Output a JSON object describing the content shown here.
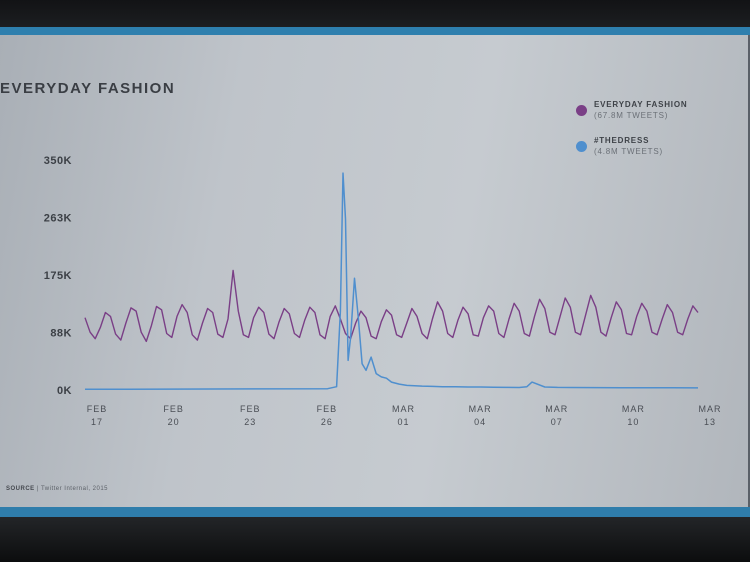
{
  "chart_data": {
    "type": "line",
    "title": "EVERYDAY FASHION",
    "source_label": "SOURCE",
    "source_text": "Twitter Internal, 2015",
    "y_ticks": [
      "0K",
      "88K",
      "175K",
      "263K",
      "350K"
    ],
    "ylim": [
      0,
      350000
    ],
    "x_ticks": [
      {
        "month": "FEB",
        "day": "17",
        "date": 17
      },
      {
        "month": "FEB",
        "day": "20",
        "date": 20
      },
      {
        "month": "FEB",
        "day": "23",
        "date": 23
      },
      {
        "month": "FEB",
        "day": "26",
        "date": 26
      },
      {
        "month": "MAR",
        "day": "01",
        "date": 29
      },
      {
        "month": "MAR",
        "day": "04",
        "date": 32
      },
      {
        "month": "MAR",
        "day": "07",
        "date": 35
      },
      {
        "month": "MAR",
        "day": "10",
        "date": 38
      },
      {
        "month": "MAR",
        "day": "13",
        "date": 41
      }
    ],
    "xlim": [
      17,
      41
    ],
    "grid": false,
    "legend_position": "top-right",
    "series": [
      {
        "name": "EVERYDAY FASHION",
        "sub": "(67.8M TWEETS)",
        "color": "#7a3f86",
        "x": [
          17.0,
          17.2,
          17.4,
          17.6,
          17.8,
          18.0,
          18.2,
          18.4,
          18.6,
          18.8,
          19.0,
          19.2,
          19.4,
          19.6,
          19.8,
          20.0,
          20.2,
          20.4,
          20.6,
          20.8,
          21.0,
          21.2,
          21.4,
          21.6,
          21.8,
          22.0,
          22.2,
          22.4,
          22.6,
          22.8,
          23.0,
          23.2,
          23.4,
          23.6,
          23.8,
          24.0,
          24.2,
          24.4,
          24.6,
          24.8,
          25.0,
          25.2,
          25.4,
          25.6,
          25.8,
          26.0,
          26.2,
          26.4,
          26.6,
          26.8,
          27.0,
          27.2,
          27.4,
          27.6,
          27.8,
          28.0,
          28.2,
          28.4,
          28.6,
          28.8,
          29.0,
          29.2,
          29.4,
          29.6,
          29.8,
          30.0,
          30.2,
          30.4,
          30.6,
          30.8,
          31.0,
          31.2,
          31.4,
          31.6,
          31.8,
          32.0,
          32.2,
          32.4,
          32.6,
          32.8,
          33.0,
          33.2,
          33.4,
          33.6,
          33.8,
          34.0,
          34.2,
          34.4,
          34.6,
          34.8,
          35.0,
          35.2,
          35.4,
          35.6,
          35.8,
          36.0,
          36.2,
          36.4,
          36.6,
          36.8,
          37.0,
          37.2,
          37.4,
          37.6,
          37.8,
          38.0,
          38.2,
          38.4,
          38.6,
          38.8,
          39.0,
          39.2,
          39.4,
          39.6,
          39.8,
          40.0,
          40.2,
          40.4,
          40.6,
          40.8,
          41.0
        ],
        "values": [
          110000,
          88000,
          78000,
          95000,
          118000,
          112000,
          85000,
          76000,
          102000,
          125000,
          120000,
          88000,
          74000,
          98000,
          127000,
          122000,
          86000,
          80000,
          112000,
          130000,
          118000,
          84000,
          76000,
          102000,
          124000,
          118000,
          85000,
          80000,
          108000,
          182000,
          120000,
          84000,
          80000,
          110000,
          126000,
          118000,
          85000,
          78000,
          104000,
          124000,
          116000,
          86000,
          80000,
          106000,
          126000,
          118000,
          84000,
          78000,
          112000,
          128000,
          108000,
          86000,
          78000,
          102000,
          120000,
          110000,
          82000,
          78000,
          104000,
          122000,
          114000,
          84000,
          80000,
          102000,
          124000,
          112000,
          86000,
          78000,
          108000,
          134000,
          120000,
          86000,
          80000,
          106000,
          126000,
          116000,
          84000,
          82000,
          110000,
          128000,
          120000,
          86000,
          80000,
          108000,
          132000,
          120000,
          86000,
          82000,
          112000,
          138000,
          124000,
          88000,
          84000,
          112000,
          140000,
          126000,
          88000,
          84000,
          114000,
          144000,
          126000,
          88000,
          82000,
          110000,
          134000,
          122000,
          86000,
          84000,
          112000,
          132000,
          120000,
          88000,
          84000,
          108000,
          130000,
          118000,
          88000,
          84000,
          108000,
          128000,
          118000
        ]
      },
      {
        "name": "#THEDRESS",
        "sub": "(4.8M TWEETS)",
        "color": "#4f8fce",
        "x": [
          17,
          26.5,
          26.85,
          27.0,
          27.1,
          27.2,
          27.3,
          27.4,
          27.55,
          27.7,
          27.85,
          28.0,
          28.2,
          28.4,
          28.6,
          28.8,
          29.0,
          29.3,
          29.6,
          29.9,
          30.2,
          30.6,
          31.0,
          31.5,
          32.0,
          32.5,
          33.0,
          33.5,
          34.0,
          34.3,
          34.5,
          35.0,
          35.5,
          36.0,
          37.0,
          38.0,
          39.0,
          40.0,
          41.0
        ],
        "values": [
          1000,
          2000,
          5000,
          120000,
          330000,
          260000,
          45000,
          80000,
          170000,
          110000,
          40000,
          30000,
          50000,
          25000,
          20000,
          18000,
          12000,
          9000,
          7000,
          6500,
          6000,
          5500,
          5000,
          4800,
          4500,
          4500,
          4200,
          4000,
          3800,
          5000,
          12000,
          4500,
          4000,
          3800,
          3600,
          3500,
          3400,
          3300,
          3200
        ]
      }
    ]
  }
}
